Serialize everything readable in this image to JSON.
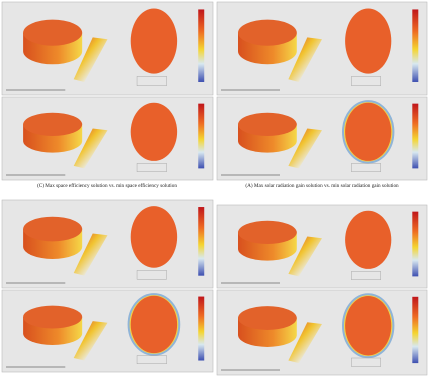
{
  "captions": {
    "top_left": "(C) Max space efficiency solution vs. min space efficiency solution",
    "top_right": "(A) Max solar radiation gain solution vs. min solar radiation gain solution"
  }
}
